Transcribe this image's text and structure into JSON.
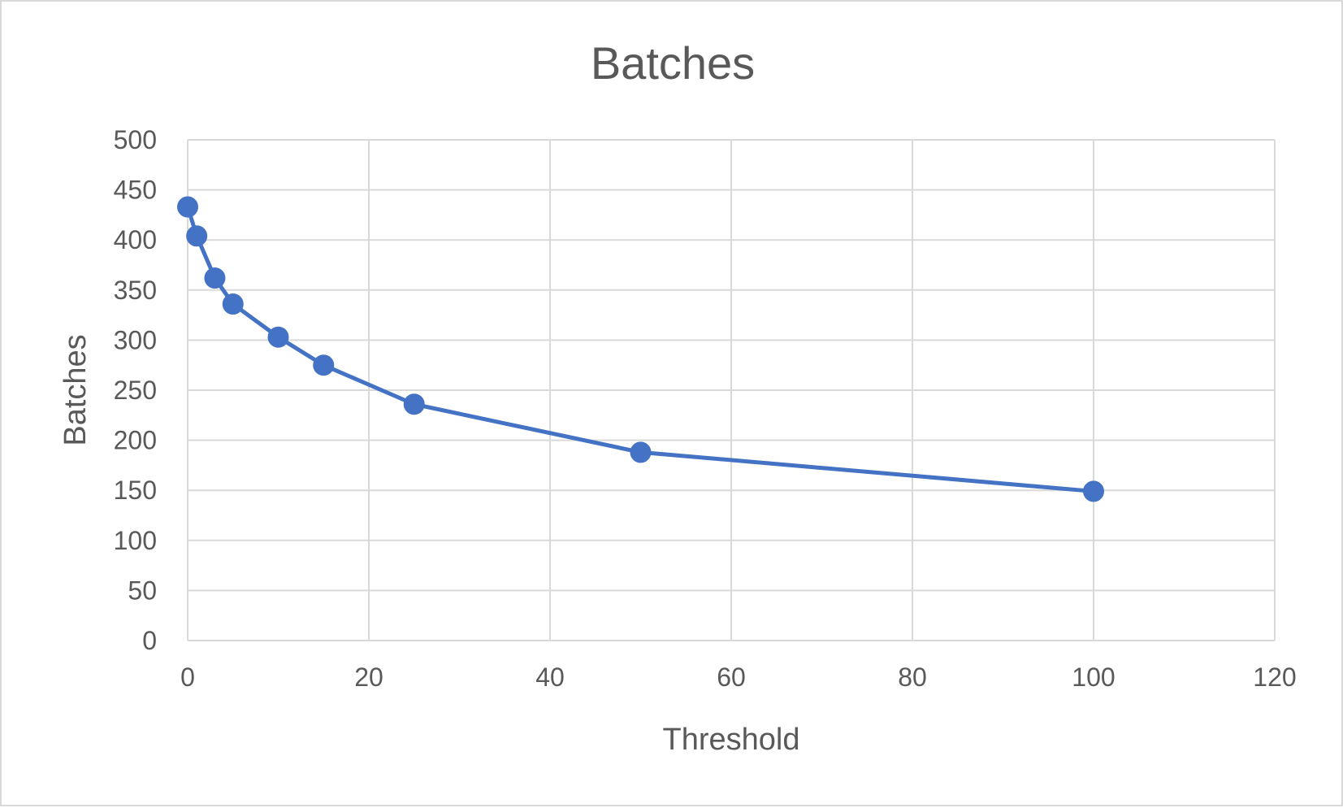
{
  "chart_data": {
    "type": "scatter",
    "title": "Batches",
    "xlabel": "Threshold",
    "ylabel": "Batches",
    "xlim": [
      0,
      120
    ],
    "ylim": [
      0,
      500
    ],
    "x_ticks": [
      0,
      20,
      40,
      60,
      80,
      100,
      120
    ],
    "y_ticks": [
      0,
      50,
      100,
      150,
      200,
      250,
      300,
      350,
      400,
      450,
      500
    ],
    "grid": true,
    "legend": "none",
    "series": [
      {
        "color": "#4472c4",
        "marker": "circle",
        "line": "straight",
        "points": [
          {
            "x": 0,
            "y": 433
          },
          {
            "x": 1,
            "y": 404
          },
          {
            "x": 3,
            "y": 362
          },
          {
            "x": 5,
            "y": 336
          },
          {
            "x": 10,
            "y": 303
          },
          {
            "x": 15,
            "y": 275
          },
          {
            "x": 25,
            "y": 236
          },
          {
            "x": 50,
            "y": 188
          },
          {
            "x": 100,
            "y": 149
          }
        ]
      }
    ]
  }
}
